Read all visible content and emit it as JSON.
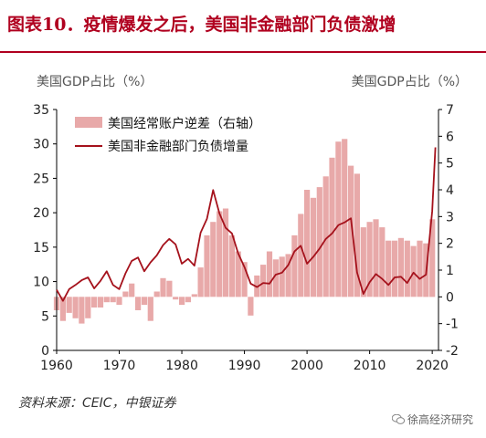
{
  "header": {
    "title": "图表10．疫情爆发之后，美国非金融部门负债激增"
  },
  "axis_units": {
    "left": "美国GDP占比（%）",
    "right": "美国GDP占比（%）"
  },
  "footer": {
    "source": "资料来源：CEIC，中银证券",
    "watermark": "徐高经济研究",
    "watermark_icon": "wechat-icon"
  },
  "colors": {
    "bar": "#e8a9a9",
    "line": "#a5121c",
    "title": "#b0001f",
    "axis": "#000000"
  },
  "chart_data": {
    "type": "bar",
    "title": "",
    "legend_placement": "top-left",
    "grid": false,
    "x_ticks": [
      1960,
      1970,
      1980,
      1990,
      2000,
      2010,
      2020
    ],
    "xlim": [
      1960,
      2021
    ],
    "left_axis": {
      "ticks": [
        0,
        5,
        10,
        15,
        20,
        25,
        30,
        35
      ],
      "ylim": [
        0,
        35
      ]
    },
    "right_axis": {
      "ticks": [
        -2,
        -1,
        0,
        1,
        2,
        3,
        4,
        5,
        6,
        7
      ],
      "ylim": [
        -2,
        7
      ]
    },
    "series": [
      {
        "name": "美国经常账户逆差（右轴）",
        "type": "bar",
        "axis": "right",
        "x": [
          1960,
          1961,
          1962,
          1963,
          1964,
          1965,
          1966,
          1967,
          1968,
          1969,
          1970,
          1971,
          1972,
          1973,
          1974,
          1975,
          1976,
          1977,
          1978,
          1979,
          1980,
          1981,
          1982,
          1983,
          1984,
          1985,
          1986,
          1987,
          1988,
          1989,
          1990,
          1991,
          1992,
          1993,
          1994,
          1995,
          1996,
          1997,
          1998,
          1999,
          2000,
          2001,
          2002,
          2003,
          2004,
          2005,
          2006,
          2007,
          2008,
          2009,
          2010,
          2011,
          2012,
          2013,
          2014,
          2015,
          2016,
          2017,
          2018,
          2019,
          2020
        ],
        "values": [
          -0.5,
          -0.9,
          -0.6,
          -0.8,
          -1.0,
          -0.8,
          -0.4,
          -0.4,
          -0.2,
          -0.2,
          -0.3,
          0.2,
          0.5,
          -0.5,
          -0.3,
          -0.9,
          0.2,
          0.7,
          0.6,
          -0.1,
          -0.3,
          -0.2,
          0.1,
          1.1,
          2.3,
          2.8,
          3.2,
          3.3,
          2.3,
          1.7,
          1.3,
          -0.7,
          0.8,
          1.2,
          1.7,
          1.4,
          1.5,
          1.6,
          2.3,
          3.1,
          4.0,
          3.7,
          4.1,
          4.5,
          5.2,
          5.8,
          5.9,
          4.9,
          4.6,
          2.6,
          2.8,
          2.9,
          2.6,
          2.1,
          2.1,
          2.2,
          2.1,
          1.9,
          2.1,
          2.0,
          2.9
        ]
      },
      {
        "name": "美国非金融部门负债增量",
        "type": "line",
        "axis": "left",
        "x": [
          1960,
          1961,
          1962,
          1963,
          1964,
          1965,
          1966,
          1967,
          1968,
          1969,
          1970,
          1971,
          1972,
          1973,
          1974,
          1975,
          1976,
          1977,
          1978,
          1979,
          1980,
          1981,
          1982,
          1983,
          1984,
          1985,
          1986,
          1987,
          1988,
          1989,
          1990,
          1991,
          1992,
          1993,
          1994,
          1995,
          1996,
          1997,
          1998,
          1999,
          2000,
          2001,
          2002,
          2003,
          2004,
          2005,
          2006,
          2007,
          2008,
          2009,
          2010,
          2011,
          2012,
          2013,
          2014,
          2015,
          2016,
          2017,
          2018,
          2019,
          2020,
          2020.5
        ],
        "values": [
          8.8,
          7.2,
          8.9,
          9.5,
          10.2,
          10.6,
          9.0,
          10.1,
          11.5,
          9.5,
          8.9,
          11.2,
          13.0,
          13.5,
          11.5,
          12.8,
          13.8,
          15.3,
          16.2,
          15.4,
          12.6,
          13.3,
          12.3,
          17.1,
          19.1,
          23.3,
          19.9,
          17.8,
          17.0,
          14.1,
          12.1,
          9.7,
          9.2,
          9.8,
          9.7,
          11.0,
          11.3,
          12.4,
          14.4,
          15.2,
          12.6,
          13.6,
          14.8,
          16.2,
          17.0,
          18.2,
          18.6,
          19.2,
          11.3,
          8.2,
          9.9,
          11.1,
          10.4,
          9.5,
          10.6,
          10.7,
          9.8,
          11.3,
          10.4,
          11.0,
          20.2,
          29.5
        ]
      }
    ]
  }
}
